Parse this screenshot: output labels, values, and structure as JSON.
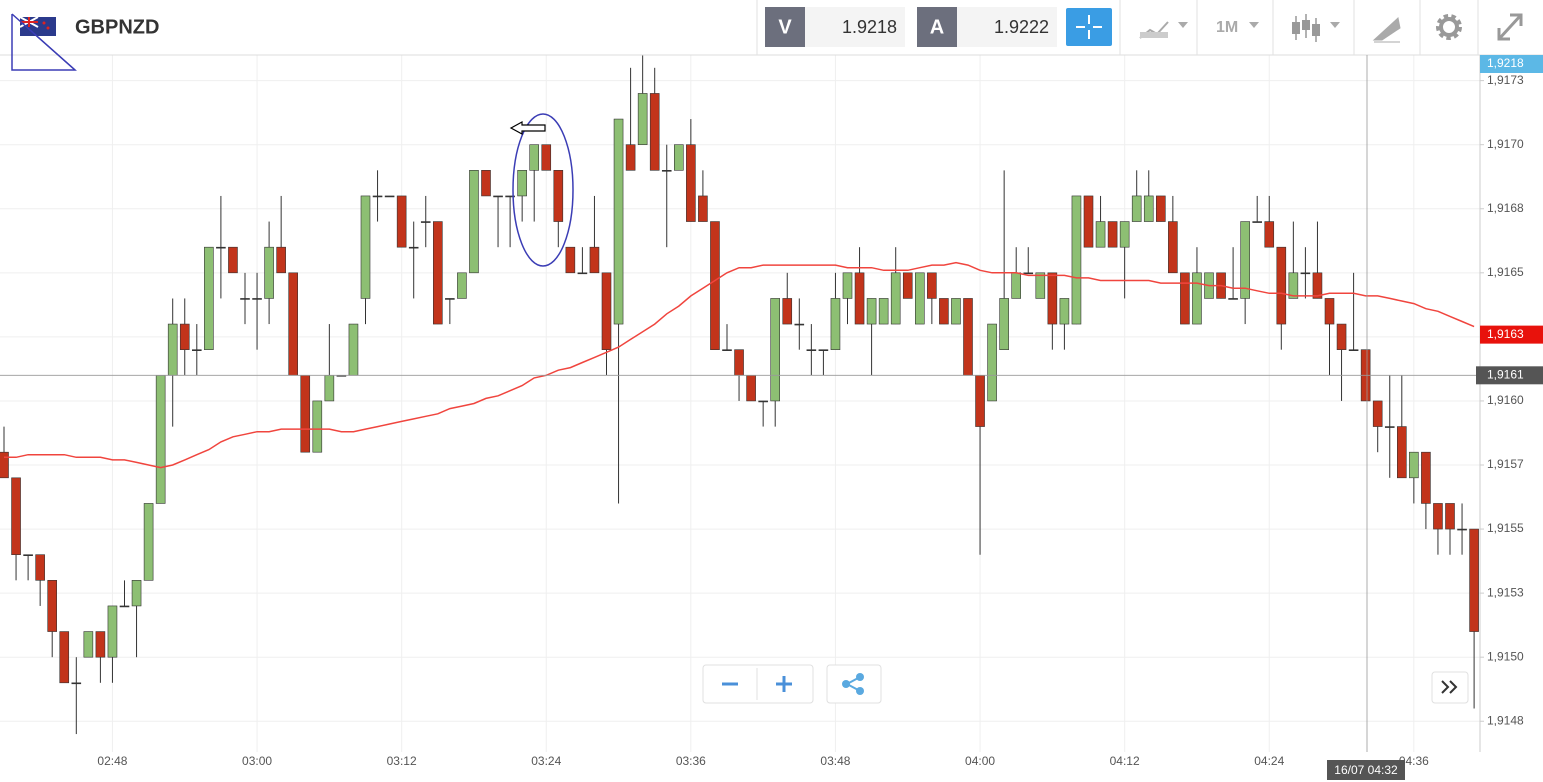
{
  "header": {
    "symbol": "GBPNZD",
    "bid_label": "V",
    "bid": "1.9218",
    "ask_label": "A",
    "ask": "1.9222",
    "timeframe": "1M"
  },
  "price_axis": {
    "ask_tag": "1,9218"
  },
  "chart_data": {
    "type": "candlestick",
    "categories": [
      null,
      null,
      null,
      null,
      null,
      null,
      null,
      null,
      null,
      "02:48",
      null,
      null,
      null,
      null,
      null,
      null,
      null,
      null,
      null,
      null,
      null,
      "03:00",
      null,
      null,
      null,
      null,
      null,
      null,
      null,
      null,
      null,
      null,
      null,
      "03:12",
      null,
      null,
      null,
      null,
      null,
      null,
      null,
      null,
      null,
      null,
      null,
      "03:24",
      null,
      null,
      null,
      null,
      null,
      null,
      null,
      null,
      null,
      null,
      null,
      "03:36",
      null,
      null,
      null,
      null,
      null,
      null,
      null,
      null,
      null,
      null,
      null,
      "03:48",
      null,
      null,
      null,
      null,
      null,
      null,
      null,
      null,
      null,
      null,
      null,
      "04:00",
      null,
      null,
      null,
      null,
      null,
      null,
      null,
      null,
      null,
      null,
      null,
      "04:12",
      null,
      null,
      null,
      null,
      null,
      null,
      null,
      null,
      null,
      null,
      null,
      "04:24",
      null,
      null,
      null,
      null,
      null,
      null,
      null,
      null,
      null,
      null,
      null,
      "04:36",
      null,
      null,
      null,
      null,
      null
    ],
    "open": [
      1.9158,
      1.9157,
      1.9154,
      1.9154,
      1.9153,
      1.9151,
      1.9149,
      1.915,
      1.9151,
      1.915,
      1.9152,
      1.9152,
      1.9153,
      1.9156,
      1.9161,
      1.9163,
      1.9162,
      1.9162,
      1.9166,
      1.9166,
      1.9164,
      1.9164,
      1.9164,
      1.9166,
      1.9165,
      1.9161,
      1.9158,
      1.916,
      1.9161,
      1.9161,
      1.9164,
      1.9168,
      1.9168,
      1.9168,
      1.9166,
      1.9167,
      1.9167,
      1.9164,
      1.9164,
      1.9165,
      1.9169,
      1.9168,
      1.9168,
      1.9168,
      1.9169,
      1.917,
      1.9169,
      1.9166,
      1.9165,
      1.9166,
      1.9165,
      1.9163,
      1.917,
      1.917,
      1.9172,
      1.9169,
      1.9169,
      1.917,
      1.9168,
      1.9167,
      1.9162,
      1.9162,
      1.9161,
      1.916,
      1.916,
      1.9164,
      1.9163,
      1.9162,
      1.9162,
      1.9162,
      1.9164,
      1.9165,
      1.9163,
      1.9163,
      1.9163,
      1.9165,
      1.9163,
      1.9165,
      1.9164,
      1.9163,
      1.9164,
      1.9161,
      1.916,
      1.9162,
      1.9164,
      1.9165,
      1.9164,
      1.9165,
      1.9163,
      1.9163,
      1.9168,
      1.9166,
      1.9167,
      1.9166,
      1.9167,
      1.9167,
      1.9168,
      1.9167,
      1.9165,
      1.9163,
      1.9164,
      1.9165,
      1.9164,
      1.9164,
      1.9167,
      1.9167,
      1.9166,
      1.9164,
      1.9165,
      1.9165,
      1.9164,
      1.9163,
      1.9162,
      1.9162,
      1.916,
      1.9159,
      1.9159,
      1.9157,
      1.9158,
      1.9156,
      1.9156,
      1.9155,
      1.9155
    ],
    "high": [
      1.9159,
      1.9157,
      1.9154,
      1.9154,
      1.9153,
      1.9151,
      1.915,
      1.9151,
      1.9151,
      1.9152,
      1.9153,
      1.9153,
      1.9156,
      1.9161,
      1.9164,
      1.9164,
      1.9163,
      1.9166,
      1.9168,
      1.9166,
      1.9165,
      1.9165,
      1.9167,
      1.9168,
      1.9165,
      1.9161,
      1.916,
      1.9163,
      1.9161,
      1.9163,
      1.9168,
      1.9169,
      1.9168,
      1.9168,
      1.9167,
      1.9168,
      1.9167,
      1.9164,
      1.9165,
      1.9169,
      1.9169,
      1.9168,
      1.9168,
      1.9169,
      1.917,
      1.917,
      1.9169,
      1.9166,
      1.9166,
      1.9168,
      1.9165,
      1.9171,
      1.9173,
      1.91735,
      1.9173,
      1.917,
      1.917,
      1.9171,
      1.9169,
      1.9167,
      1.9163,
      1.9162,
      1.9161,
      1.916,
      1.9164,
      1.9165,
      1.9164,
      1.9163,
      1.9162,
      1.9165,
      1.9165,
      1.9166,
      1.9164,
      1.9164,
      1.9166,
      1.9165,
      1.9165,
      1.9165,
      1.9164,
      1.9164,
      1.9164,
      1.9161,
      1.9163,
      1.9169,
      1.9166,
      1.9166,
      1.9165,
      1.9165,
      1.9164,
      1.9168,
      1.9168,
      1.9168,
      1.9167,
      1.9167,
      1.9169,
      1.9169,
      1.9168,
      1.9168,
      1.9165,
      1.9166,
      1.9165,
      1.9165,
      1.9166,
      1.9167,
      1.9168,
      1.9168,
      1.9166,
      1.9167,
      1.9166,
      1.9167,
      1.9164,
      1.9163,
      1.9165,
      1.9162,
      1.916,
      1.9161,
      1.9161,
      1.9158,
      1.9158,
      1.9156,
      1.9156,
      1.9156,
      1.9155
    ],
    "low": [
      1.9157,
      1.9153,
      1.9153,
      1.9152,
      1.915,
      1.9149,
      1.9147,
      1.915,
      1.9149,
      1.9149,
      1.9152,
      1.915,
      1.9153,
      1.9156,
      1.9159,
      1.9161,
      1.9161,
      1.9162,
      1.9164,
      1.9165,
      1.9163,
      1.9162,
      1.9163,
      1.9165,
      1.9161,
      1.9158,
      1.9158,
      1.916,
      1.9161,
      1.9161,
      1.9163,
      1.9167,
      1.9168,
      1.9166,
      1.9164,
      1.9166,
      1.9163,
      1.9163,
      1.9164,
      1.9165,
      1.9168,
      1.9166,
      1.9166,
      1.9167,
      1.9167,
      1.9169,
      1.9166,
      1.9165,
      1.9165,
      1.9165,
      1.9161,
      1.9156,
      1.9169,
      1.917,
      1.9169,
      1.9166,
      1.9169,
      1.9167,
      1.9167,
      1.9162,
      1.9162,
      1.916,
      1.916,
      1.9159,
      1.9159,
      1.9163,
      1.9162,
      1.9161,
      1.9161,
      1.9162,
      1.9163,
      1.9163,
      1.9161,
      1.9163,
      1.9163,
      1.9164,
      1.9163,
      1.9163,
      1.9163,
      1.9163,
      1.9161,
      1.9154,
      1.916,
      1.9162,
      1.9164,
      1.9165,
      1.9164,
      1.9162,
      1.9162,
      1.9163,
      1.9166,
      1.9166,
      1.9166,
      1.9164,
      1.9167,
      1.9167,
      1.9167,
      1.9165,
      1.9163,
      1.9163,
      1.9164,
      1.9164,
      1.9164,
      1.9163,
      1.9167,
      1.9166,
      1.9162,
      1.9164,
      1.9164,
      1.9164,
      1.9161,
      1.916,
      1.9162,
      1.916,
      1.9158,
      1.9157,
      1.9157,
      1.9156,
      1.9155,
      1.9154,
      1.9154,
      1.9154,
      1.9148
    ],
    "close": [
      1.9157,
      1.9154,
      1.9154,
      1.9153,
      1.9151,
      1.9149,
      1.9149,
      1.9151,
      1.915,
      1.9152,
      1.9152,
      1.9153,
      1.9156,
      1.9161,
      1.9163,
      1.9162,
      1.9162,
      1.9166,
      1.9166,
      1.9165,
      1.9164,
      1.9164,
      1.9166,
      1.9165,
      1.9161,
      1.9158,
      1.916,
      1.9161,
      1.9161,
      1.9163,
      1.9168,
      1.9168,
      1.9168,
      1.9166,
      1.9166,
      1.9167,
      1.9163,
      1.9164,
      1.9165,
      1.9169,
      1.9168,
      1.9168,
      1.9168,
      1.9169,
      1.917,
      1.9169,
      1.9167,
      1.9165,
      1.9165,
      1.9165,
      1.9162,
      1.9171,
      1.9169,
      1.9172,
      1.9169,
      1.9169,
      1.917,
      1.9167,
      1.9167,
      1.9162,
      1.9162,
      1.9161,
      1.916,
      1.916,
      1.9164,
      1.9163,
      1.9163,
      1.9162,
      1.9162,
      1.9164,
      1.9165,
      1.9163,
      1.9164,
      1.9164,
      1.9165,
      1.9164,
      1.9165,
      1.9164,
      1.9163,
      1.9164,
      1.9161,
      1.9159,
      1.9163,
      1.9164,
      1.9165,
      1.9165,
      1.9165,
      1.9163,
      1.9164,
      1.9168,
      1.9166,
      1.9167,
      1.9166,
      1.9167,
      1.9168,
      1.9168,
      1.9167,
      1.9165,
      1.9163,
      1.9165,
      1.9165,
      1.9164,
      1.9164,
      1.9167,
      1.9167,
      1.9166,
      1.9163,
      1.9165,
      1.9165,
      1.9164,
      1.9163,
      1.9162,
      1.9162,
      1.916,
      1.9159,
      1.9159,
      1.9157,
      1.9158,
      1.9156,
      1.9155,
      1.9155,
      1.9155,
      1.9151
    ],
    "up_color": "#8dbf73",
    "down_color": "#c2341b",
    "ma": {
      "color": "#f0453e",
      "last_label": "1,9163",
      "values": [
        1.91578,
        1.91578,
        1.91579,
        1.91579,
        1.91579,
        1.91579,
        1.91578,
        1.91578,
        1.91578,
        1.91577,
        1.91577,
        1.91576,
        1.91575,
        1.91574,
        1.91575,
        1.91577,
        1.91579,
        1.91581,
        1.91584,
        1.91586,
        1.91587,
        1.91588,
        1.91588,
        1.91589,
        1.91589,
        1.91589,
        1.91589,
        1.91589,
        1.91588,
        1.91588,
        1.91589,
        1.9159,
        1.91591,
        1.91592,
        1.91593,
        1.91594,
        1.91595,
        1.91597,
        1.91598,
        1.91599,
        1.91601,
        1.91602,
        1.91604,
        1.91606,
        1.91609,
        1.9161,
        1.91612,
        1.91613,
        1.91615,
        1.91617,
        1.91619,
        1.91621,
        1.91624,
        1.91627,
        1.9163,
        1.91634,
        1.91637,
        1.91641,
        1.91644,
        1.91647,
        1.9165,
        1.91652,
        1.91652,
        1.91653,
        1.91653,
        1.91653,
        1.91653,
        1.91653,
        1.91653,
        1.91653,
        1.91652,
        1.91652,
        1.91652,
        1.91651,
        1.91651,
        1.91651,
        1.91652,
        1.91653,
        1.91653,
        1.91654,
        1.91653,
        1.91651,
        1.9165,
        1.9165,
        1.9165,
        1.91649,
        1.91649,
        1.91649,
        1.91649,
        1.91648,
        1.91648,
        1.91647,
        1.91647,
        1.91647,
        1.91647,
        1.91647,
        1.91646,
        1.91646,
        1.91646,
        1.91646,
        1.91645,
        1.91645,
        1.91644,
        1.91644,
        1.91643,
        1.91642,
        1.91642,
        1.91641,
        1.91641,
        1.91641,
        1.91642,
        1.91642,
        1.91642,
        1.91641,
        1.91641,
        1.9164,
        1.91639,
        1.91638,
        1.91636,
        1.91635,
        1.91633,
        1.91631,
        1.91629
      ]
    },
    "ylim": [
      1.91463,
      1.91735
    ],
    "yticks": [
      {
        "value": 1.91475,
        "label": "1,9148"
      },
      {
        "value": 1.915,
        "label": "1,9150"
      },
      {
        "value": 1.91525,
        "label": "1,9153"
      },
      {
        "value": 1.9155,
        "label": "1,9155"
      },
      {
        "value": 1.91575,
        "label": "1,9157"
      },
      {
        "value": 1.916,
        "label": "1,9160"
      },
      {
        "value": 1.91625,
        "label": "1,9163"
      },
      {
        "value": 1.9165,
        "label": "1,9165"
      },
      {
        "value": 1.91675,
        "label": "1,9168"
      },
      {
        "value": 1.917,
        "label": "1,9170"
      },
      {
        "value": 1.91725,
        "label": "1,9173"
      }
    ],
    "grid": true,
    "crosshair": {
      "value": 1.9161,
      "label": "1,9161",
      "time_label": "16/07 04:32"
    }
  }
}
